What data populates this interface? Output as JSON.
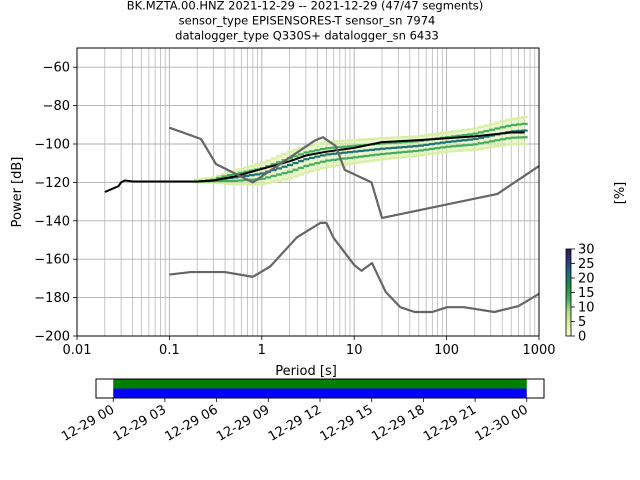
{
  "chart_data": [
    {
      "type": "line",
      "title_lines": [
        "BK.MZTA.00.HNZ   2021-12-29 -- 2021-12-29  (47/47 segments)",
        "sensor_type EPISENSORES-T sensor_sn 7974",
        "datalogger_type Q330S+ datalogger_sn 6433"
      ],
      "xlabel": "Period [s]",
      "ylabel": "Power [dB]",
      "xscale": "log",
      "xlim": [
        0.01,
        1000
      ],
      "ylim": [
        -200,
        -50
      ],
      "xticks": [
        0.01,
        0.1,
        1,
        10,
        100,
        1000
      ],
      "xtick_labels": [
        "0.01",
        "0.1",
        "1",
        "10",
        "100",
        "1000"
      ],
      "yticks": [
        -200,
        -180,
        -160,
        -140,
        -120,
        -100,
        -80,
        -60
      ],
      "ytick_labels": [
        "−200",
        "−180",
        "−160",
        "−140",
        "−120",
        "−100",
        "−80",
        "−60"
      ],
      "grid": true,
      "series": [
        {
          "role": "mean_psd",
          "color": "#000000",
          "x": [
            0.02,
            0.025,
            0.028,
            0.03,
            0.033,
            0.04,
            0.05,
            0.1,
            0.2,
            0.3,
            0.5,
            1,
            2,
            3,
            5,
            10,
            20,
            50,
            100,
            200,
            500,
            700
          ],
          "y": [
            -125,
            -123,
            -122,
            -120,
            -119,
            -119.5,
            -119.5,
            -119.5,
            -119.5,
            -119,
            -117,
            -113,
            -109,
            -106,
            -104,
            -102,
            -99,
            -98,
            -97,
            -96,
            -94,
            -94
          ]
        },
        {
          "role": "noise_model_high",
          "color": "#666666",
          "x": [
            0.1,
            0.22,
            0.32,
            0.8,
            3.8,
            4.6,
            6.3,
            7.9,
            15.4,
            20,
            354.8,
            1000
          ],
          "y": [
            -91.5,
            -97.4,
            -110.5,
            -120,
            -98,
            -96.5,
            -101,
            -113.5,
            -120,
            -138.5,
            -126,
            -111.5
          ]
        },
        {
          "role": "noise_model_low",
          "color": "#666666",
          "x": [
            0.1,
            0.17,
            0.4,
            0.8,
            1.24,
            2.4,
            4.3,
            5,
            6,
            10,
            12,
            15.6,
            21.9,
            31.6,
            45,
            70,
            101,
            154,
            328,
            600,
            1000
          ],
          "y": [
            -168,
            -166.7,
            -166.7,
            -169.2,
            -163.7,
            -148.6,
            -141.1,
            -141.1,
            -149,
            -163,
            -166,
            -162,
            -177,
            -185,
            -187.5,
            -187.5,
            -185,
            -185,
            -187.5,
            -184.4,
            -178
          ]
        }
      ],
      "ppsd_band": {
        "x": [
          0.2,
          0.3,
          0.5,
          1,
          2,
          3,
          5,
          10,
          20,
          50,
          100,
          200,
          500,
          700
        ],
        "y_low": [
          -120,
          -120,
          -121,
          -121,
          -118,
          -115,
          -112,
          -110,
          -108,
          -106,
          -104,
          -103,
          -100,
          -100
        ],
        "y_high": [
          -118.5,
          -117.5,
          -114,
          -110,
          -104,
          -101,
          -99,
          -98,
          -97,
          -96,
          -94,
          -92,
          -87,
          -86
        ]
      },
      "colorbar": {
        "label": "[%]",
        "range": [
          0,
          30
        ],
        "ticks": [
          0,
          5,
          10,
          15,
          20,
          25,
          30
        ],
        "tick_labels": [
          "0",
          "5",
          "10",
          "15",
          "20",
          "25",
          "30"
        ],
        "colormap": [
          "#ffffcc",
          "#d9f0a3",
          "#addd8e",
          "#41ab5d",
          "#238b45",
          "#1d6e7a",
          "#2b3a7a",
          "#2d1e4f"
        ]
      }
    },
    {
      "type": "timeline",
      "start": "2021-12-29 00:00",
      "end": "2021-12-30 00:00",
      "xlim_hours": [
        -1,
        25
      ],
      "xticks_hours": [
        0,
        3,
        6,
        9,
        12,
        15,
        18,
        21,
        24
      ],
      "xtick_labels": [
        "12-29 00",
        "12-29 03",
        "12-29 06",
        "12-29 09",
        "12-29 12",
        "12-29 15",
        "12-29 18",
        "12-29 21",
        "12-30 00"
      ],
      "bars": [
        {
          "color": "#008000",
          "from_hours": 0,
          "to_hours": 24
        },
        {
          "color": "#0000ff",
          "from_hours": 0,
          "to_hours": 24
        }
      ]
    }
  ]
}
